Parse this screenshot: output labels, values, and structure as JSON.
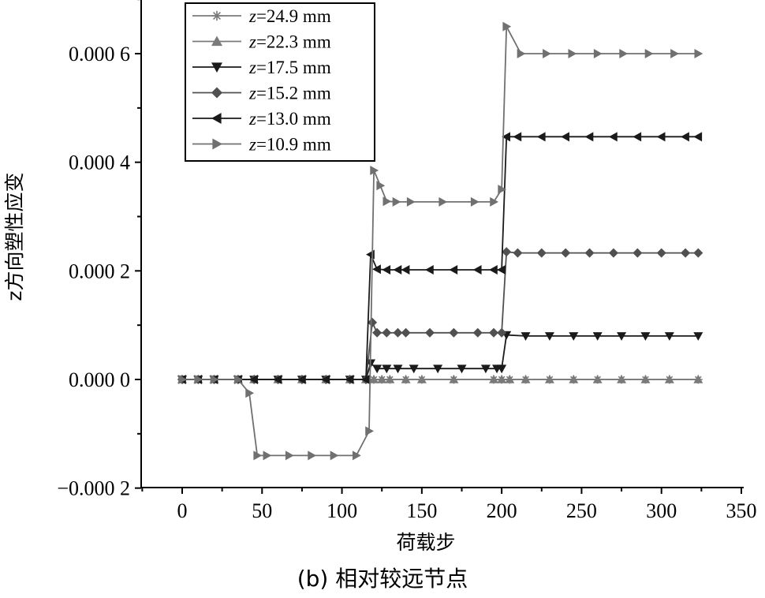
{
  "caption": "(b) 相对较远节点",
  "chart_data": {
    "type": "line",
    "title": "",
    "xlabel": "荷载步",
    "ylabel": "z方向塑性应变",
    "xlim": [
      -25,
      350
    ],
    "ylim": [
      -0.0002,
      0.0007
    ],
    "xticks": [
      0,
      50,
      100,
      150,
      200,
      250,
      300,
      350
    ],
    "xtick_labels": [
      "0",
      "50",
      "100",
      "150",
      "200",
      "250",
      "300",
      "350"
    ],
    "yticks": [
      -0.0002,
      0.0,
      0.0002,
      0.0004,
      0.0006
    ],
    "ytick_labels": [
      "−0.000 2",
      "0.000 0",
      "0.000 2",
      "0.000 4",
      "0.000 6"
    ],
    "grid": false,
    "legend_position": "top-left",
    "series": [
      {
        "name": "z=24.9 mm",
        "name_var": "z",
        "name_rest": "=24.9 mm",
        "marker": "star",
        "color": "#7a7a7a",
        "x": [
          0,
          10,
          20,
          35,
          45,
          60,
          75,
          90,
          105,
          115,
          120,
          125,
          130,
          140,
          150,
          170,
          195,
          200,
          205,
          215,
          230,
          245,
          260,
          275,
          290,
          305,
          323
        ],
        "y": [
          0,
          0,
          0,
          0,
          0,
          0,
          0,
          0,
          0,
          0,
          0,
          0,
          0,
          0,
          0,
          0,
          0,
          0,
          0,
          0,
          0,
          0,
          0,
          0,
          0,
          0,
          0
        ]
      },
      {
        "name": "z=22.3 mm",
        "name_var": "z",
        "name_rest": "=22.3 mm",
        "marker": "triangle-up",
        "color": "#7a7a7a",
        "x": [
          0,
          10,
          20,
          35,
          45,
          60,
          75,
          90,
          105,
          115,
          120,
          125,
          130,
          140,
          150,
          170,
          195,
          200,
          205,
          215,
          230,
          245,
          260,
          275,
          290,
          305,
          323
        ],
        "y": [
          0,
          0,
          0,
          0,
          0,
          0,
          0,
          0,
          0,
          0,
          0,
          0,
          0,
          0,
          0,
          0,
          0,
          0,
          0,
          0,
          0,
          0,
          0,
          0,
          0,
          0,
          0
        ]
      },
      {
        "name": "z=17.5 mm",
        "name_var": "z",
        "name_rest": "=17.5 mm",
        "marker": "triangle-down",
        "color": "#1a1a1a",
        "x": [
          0,
          10,
          20,
          35,
          45,
          60,
          75,
          90,
          105,
          115,
          118,
          122,
          128,
          135,
          145,
          160,
          175,
          190,
          197,
          200,
          203,
          215,
          230,
          245,
          260,
          275,
          290,
          305,
          323
        ],
        "y": [
          0,
          0,
          0,
          0,
          0,
          0,
          0,
          0,
          0,
          0,
          3e-05,
          2e-05,
          2e-05,
          2e-05,
          2e-05,
          2e-05,
          2e-05,
          2e-05,
          2e-05,
          2e-05,
          8.2e-05,
          8e-05,
          8e-05,
          8e-05,
          8e-05,
          8e-05,
          8e-05,
          8e-05,
          8e-05
        ]
      },
      {
        "name": "z=15.2 mm",
        "name_var": "z",
        "name_rest": "=15.2 mm",
        "marker": "diamond",
        "color": "#505050",
        "x": [
          0,
          10,
          20,
          35,
          45,
          60,
          75,
          90,
          105,
          115,
          119,
          122,
          128,
          135,
          140,
          155,
          170,
          185,
          195,
          200,
          203,
          210,
          225,
          240,
          255,
          270,
          285,
          300,
          315,
          323
        ],
        "y": [
          0,
          0,
          0,
          0,
          0,
          0,
          0,
          0,
          0,
          0,
          0.000105,
          8.6e-05,
          8.6e-05,
          8.6e-05,
          8.6e-05,
          8.6e-05,
          8.6e-05,
          8.6e-05,
          8.6e-05,
          8.6e-05,
          0.000235,
          0.000233,
          0.000233,
          0.000233,
          0.000233,
          0.000233,
          0.000233,
          0.000233,
          0.000233,
          0.000233
        ]
      },
      {
        "name": "z=13.0 mm",
        "name_var": "z",
        "name_rest": "=13.0 mm",
        "marker": "triangle-left",
        "color": "#1a1a1a",
        "x": [
          0,
          10,
          20,
          35,
          45,
          60,
          75,
          90,
          105,
          115,
          118,
          122,
          128,
          135,
          140,
          155,
          170,
          185,
          195,
          200,
          203,
          210,
          225,
          240,
          255,
          270,
          285,
          300,
          315,
          323
        ],
        "y": [
          0,
          0,
          0,
          0,
          0,
          0,
          0,
          0,
          0,
          0,
          0.00023,
          0.000203,
          0.000202,
          0.000202,
          0.000202,
          0.000202,
          0.000202,
          0.000202,
          0.000202,
          0.000202,
          0.000447,
          0.000447,
          0.000447,
          0.000447,
          0.000447,
          0.000447,
          0.000447,
          0.000447,
          0.000447,
          0.000447
        ]
      },
      {
        "name": "z=10.9 mm",
        "name_var": "z",
        "name_rest": "=10.9 mm",
        "marker": "triangle-right",
        "color": "#707070",
        "x": [
          0,
          10,
          20,
          35,
          42,
          47,
          53,
          67,
          81,
          95,
          109,
          117,
          120,
          124,
          128,
          134,
          143,
          163,
          183,
          195,
          200,
          203,
          212,
          228,
          244,
          260,
          276,
          292,
          308,
          323
        ],
        "y": [
          0,
          0,
          0,
          0,
          -2.5e-05,
          -0.00014,
          -0.00014,
          -0.00014,
          -0.00014,
          -0.00014,
          -0.00014,
          -9.5e-05,
          0.000385,
          0.000357,
          0.000328,
          0.000327,
          0.000327,
          0.000327,
          0.000327,
          0.000327,
          0.00035,
          0.00065,
          0.0006,
          0.0006,
          0.0006,
          0.0006,
          0.0006,
          0.0006,
          0.0006,
          0.0006
        ]
      }
    ]
  }
}
